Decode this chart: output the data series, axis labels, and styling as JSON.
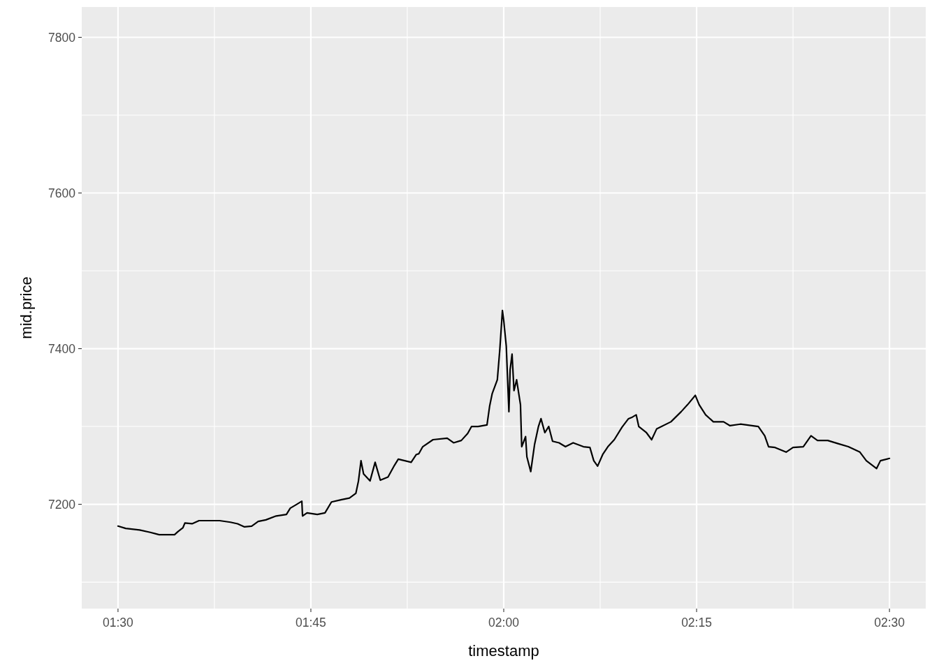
{
  "chart_data": {
    "type": "line",
    "xlabel": "timestamp",
    "ylabel": "mid.price",
    "grid": true,
    "line_style": "solid",
    "xlim": [
      1.453,
      2.547
    ],
    "ylim": [
      7066,
      7839
    ],
    "xticks": [
      {
        "value": 1.5,
        "label": "01:30"
      },
      {
        "value": 1.75,
        "label": "01:45"
      },
      {
        "value": 2.0,
        "label": "02:00"
      },
      {
        "value": 2.25,
        "label": "02:15"
      },
      {
        "value": 2.5,
        "label": "02:30"
      }
    ],
    "yticks": [
      7200,
      7400,
      7600,
      7800
    ],
    "series": [
      {
        "color": "#000000",
        "x": [
          1.5,
          1.51,
          1.528,
          1.5417,
          1.5533,
          1.5733,
          1.5778,
          1.5842,
          1.5867,
          1.596,
          1.605,
          1.6183,
          1.6317,
          1.6458,
          1.655,
          1.664,
          1.6733,
          1.6817,
          1.6917,
          1.705,
          1.7183,
          1.7233,
          1.7317,
          1.7383,
          1.7392,
          1.745,
          1.7583,
          1.7683,
          1.7767,
          1.79,
          1.8,
          1.8083,
          1.8117,
          1.815,
          1.8183,
          1.8267,
          1.8333,
          1.84,
          1.85,
          1.8583,
          1.8633,
          1.8717,
          1.88,
          1.8867,
          1.89,
          1.895,
          1.9083,
          1.9267,
          1.935,
          1.945,
          1.9533,
          1.9583,
          1.9667,
          1.9783,
          1.9817,
          1.985,
          1.9917,
          1.995,
          1.9983,
          2.0,
          2.0033,
          2.0067,
          2.0083,
          2.0108,
          2.0133,
          2.0167,
          2.0217,
          2.0233,
          2.0283,
          2.03,
          2.035,
          2.04,
          2.045,
          2.0483,
          2.0533,
          2.0583,
          2.0633,
          2.0717,
          2.08,
          2.09,
          2.1033,
          2.1117,
          2.1167,
          2.1217,
          2.1283,
          2.135,
          2.1433,
          2.1533,
          2.1617,
          2.1667,
          2.1717,
          2.175,
          2.185,
          2.1917,
          2.1983,
          2.2167,
          2.23,
          2.2383,
          2.2483,
          2.2533,
          2.2617,
          2.2717,
          2.285,
          2.2933,
          2.3067,
          2.33,
          2.3383,
          2.3433,
          2.3517,
          2.366,
          2.375,
          2.3883,
          2.3983,
          2.4067,
          2.42,
          2.4333,
          2.4467,
          2.4617,
          2.47,
          2.4833,
          2.4883,
          2.5
        ],
        "values": [
          7172,
          7169,
          7167,
          7164,
          7161,
          7161,
          7165,
          7170,
          7176,
          7175,
          7179,
          7179,
          7179,
          7177,
          7175,
          7171,
          7172,
          7178,
          7180,
          7185,
          7187,
          7195,
          7200,
          7204,
          7185,
          7189,
          7187,
          7189,
          7203,
          7206,
          7208,
          7214,
          7230,
          7256,
          7239,
          7230,
          7254,
          7231,
          7235,
          7250,
          7258,
          7256,
          7254,
          7264,
          7265,
          7274,
          7283,
          7285,
          7279,
          7282,
          7291,
          7300,
          7300,
          7302,
          7326,
          7342,
          7360,
          7400,
          7449,
          7436,
          7403,
          7319,
          7373,
          7393,
          7346,
          7360,
          7328,
          7274,
          7287,
          7261,
          7242,
          7277,
          7300,
          7310,
          7292,
          7300,
          7281,
          7279,
          7274,
          7279,
          7274,
          7273,
          7256,
          7249,
          7264,
          7274,
          7283,
          7299,
          7310,
          7312,
          7315,
          7300,
          7292,
          7283,
          7297,
          7306,
          7319,
          7328,
          7340,
          7328,
          7315,
          7306,
          7306,
          7301,
          7303,
          7300,
          7288,
          7274,
          7273,
          7267,
          7273,
          7274,
          7288,
          7282,
          7282,
          7278,
          7274,
          7267,
          7256,
          7246,
          7256,
          7259
        ]
      }
    ]
  }
}
